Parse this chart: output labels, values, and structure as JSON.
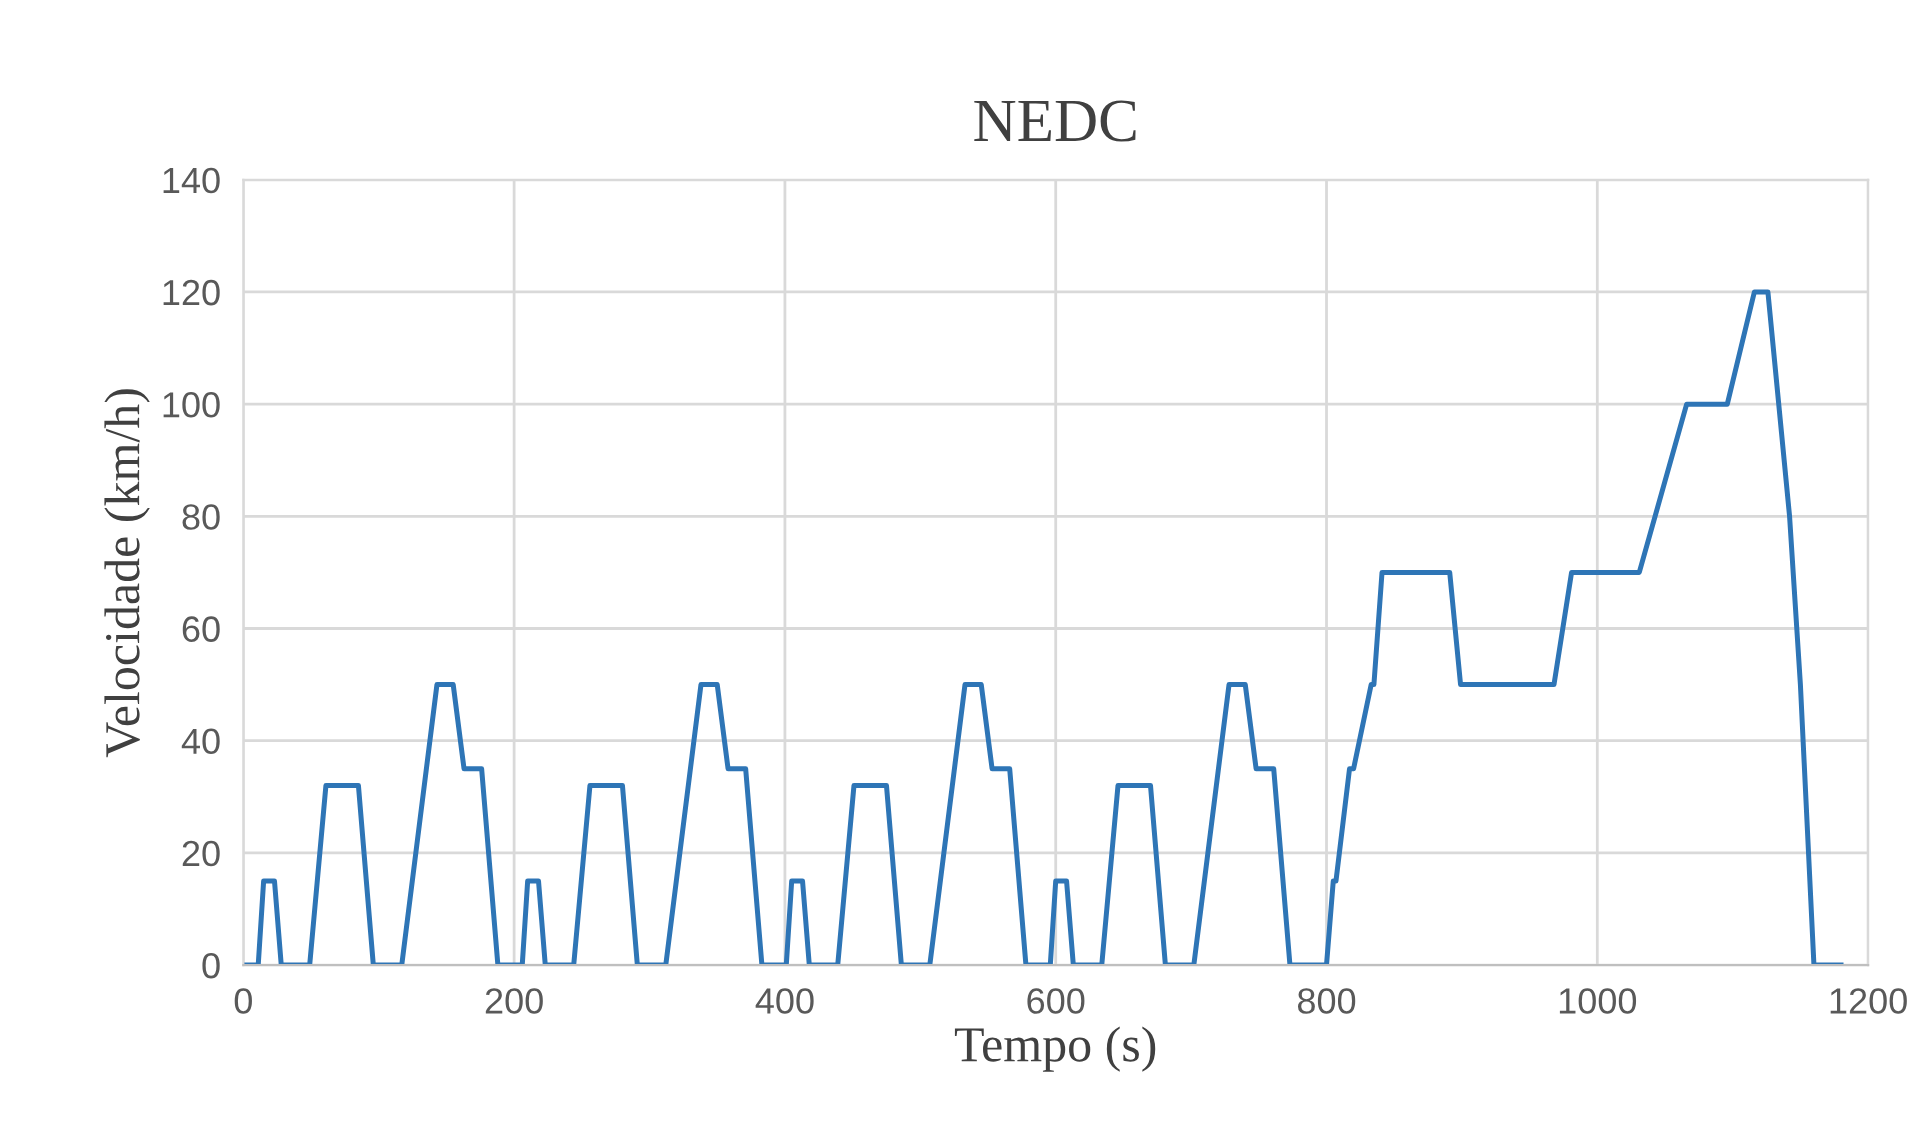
{
  "chart_data": {
    "type": "line",
    "title": "NEDC",
    "xlabel": "Tempo (s)",
    "ylabel": "Velocidade (km/h)",
    "x": [
      0,
      11,
      15,
      23,
      28,
      49,
      61,
      85,
      96,
      117,
      143,
      155,
      163,
      176,
      188,
      195,
      206,
      210,
      218,
      223,
      244,
      256,
      280,
      291,
      312,
      338,
      350,
      358,
      371,
      383,
      390,
      401,
      405,
      413,
      418,
      439,
      451,
      475,
      486,
      507,
      533,
      545,
      553,
      566,
      578,
      585,
      596,
      600,
      608,
      613,
      634,
      646,
      670,
      681,
      702,
      728,
      740,
      748,
      761,
      773,
      800,
      805,
      807,
      817,
      820,
      833,
      835,
      841,
      891,
      899,
      968,
      981,
      1031,
      1066,
      1096,
      1116,
      1126,
      1142,
      1150,
      1160,
      1180
    ],
    "series": [
      {
        "color": "#2e75b6",
        "values": [
          0,
          0,
          15,
          15,
          0,
          0,
          32,
          32,
          0,
          0,
          50,
          50,
          35,
          35,
          0,
          0,
          0,
          15,
          15,
          0,
          0,
          32,
          32,
          0,
          0,
          50,
          50,
          35,
          35,
          0,
          0,
          0,
          15,
          15,
          0,
          0,
          32,
          32,
          0,
          0,
          50,
          50,
          35,
          35,
          0,
          0,
          0,
          15,
          15,
          0,
          0,
          32,
          32,
          0,
          0,
          50,
          50,
          35,
          35,
          0,
          0,
          15,
          15,
          35,
          35,
          50,
          50,
          70,
          70,
          50,
          50,
          70,
          70,
          100,
          100,
          120,
          120,
          80,
          50,
          0,
          0
        ]
      }
    ],
    "xlim": [
      0,
      1200
    ],
    "xticks": [
      0,
      200,
      400,
      600,
      800,
      1000,
      1200
    ],
    "ylim": [
      0,
      140
    ],
    "yticks": [
      0,
      20,
      40,
      60,
      80,
      100,
      120,
      140
    ],
    "grid": true,
    "marker": "none",
    "line_style": "solid"
  }
}
